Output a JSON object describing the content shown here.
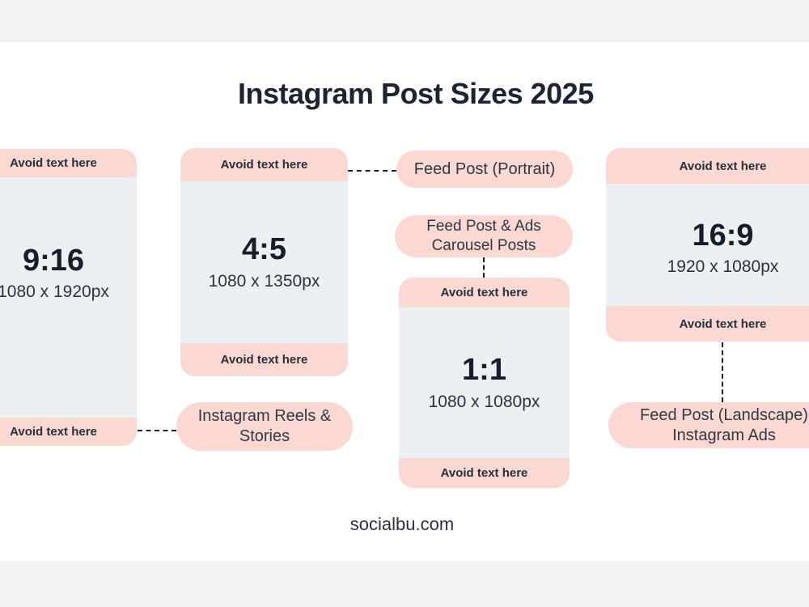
{
  "page": {
    "title": "Instagram Post Sizes 2025",
    "footer_url": "socialbu.com"
  },
  "colors": {
    "accent_pink": "#fbd8d2",
    "card_body_gray": "#edf0f2",
    "page_band_gray": "#f0f2f4",
    "text_navy": "#1c2433",
    "connector_black": "#1c1c1c"
  },
  "cards": [
    {
      "ratio": "9:16",
      "dimensions": "1080 x 1920px",
      "top_label": "Avoid text here",
      "bottom_label": "Avoid text here"
    },
    {
      "ratio": "4:5",
      "dimensions": "1080 x 1350px",
      "top_label": "Avoid text here",
      "bottom_label": "Avoid text here"
    },
    {
      "ratio": "1:1",
      "dimensions": "1080 x 1080px",
      "top_label": "Avoid text here",
      "bottom_label": "Avoid text here"
    },
    {
      "ratio": "16:9",
      "dimensions": "1920 x 1080px",
      "top_label": "Avoid text here",
      "bottom_label": "Avoid text here"
    }
  ],
  "labels": [
    {
      "line1": "Feed Post (Portrait)",
      "line2": ""
    },
    {
      "line1": "Feed Post & Ads",
      "line2": "Carousel Posts"
    },
    {
      "line1": "Instagram Reels &",
      "line2": "Stories"
    },
    {
      "line1": "Feed Post (Landscape)",
      "line2": "Instagram Ads"
    }
  ]
}
